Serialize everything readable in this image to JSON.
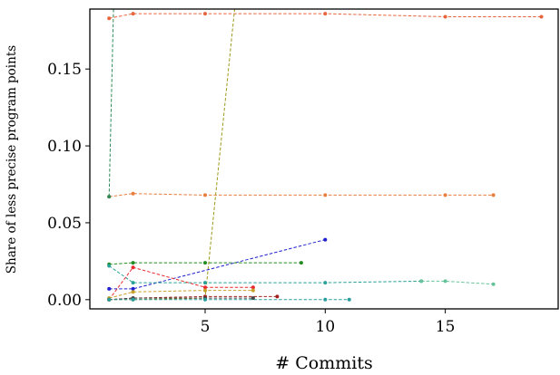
{
  "chart_data": {
    "type": "line",
    "title": "",
    "xlabel": "# Commits",
    "ylabel": "Share of less precise program points",
    "xlim": [
      0.2,
      19.7
    ],
    "ylim": [
      -0.006,
      0.189
    ],
    "xticks": [
      5,
      10,
      15
    ],
    "yticks": [
      0.0,
      0.05,
      0.1,
      0.15
    ],
    "ytick_labels": [
      "0.00",
      "0.05",
      "0.10",
      "0.15"
    ],
    "xtick_labels": [
      "5",
      "10",
      "15"
    ],
    "grid": false,
    "legend": "none",
    "series": [
      {
        "color": "#e8643c",
        "dash": true,
        "x": [
          1,
          2,
          5,
          10,
          15,
          19
        ],
        "y": [
          0.183,
          0.186,
          0.186,
          0.186,
          0.184,
          0.184
        ]
      },
      {
        "color": "#e87d3e",
        "dash": true,
        "x": [
          1,
          2,
          5,
          10,
          15,
          17
        ],
        "y": [
          0.067,
          0.069,
          0.068,
          0.068,
          0.068,
          0.068
        ]
      },
      {
        "color": "#2e8b57",
        "dash": true,
        "x": [
          1,
          1.2
        ],
        "y": [
          0.067,
          0.2
        ]
      },
      {
        "color": "#9c9a1a",
        "dash": true,
        "x": [
          1,
          2,
          5,
          6.3
        ],
        "y": [
          0.0,
          0.0,
          0.001,
          0.2
        ]
      },
      {
        "color": "#1f1fd1",
        "dash": true,
        "x": [
          1,
          2,
          10
        ],
        "y": [
          0.007,
          0.007,
          0.039
        ]
      },
      {
        "color": "#228b22",
        "dash": true,
        "x": [
          1,
          2,
          5,
          9
        ],
        "y": [
          0.023,
          0.024,
          0.024,
          0.024
        ]
      },
      {
        "color": "#2aa198",
        "dash": true,
        "x": [
          1,
          2,
          5,
          10,
          14
        ],
        "y": [
          0.022,
          0.011,
          0.011,
          0.011,
          0.012
        ]
      },
      {
        "color": "#66c29a",
        "dash": true,
        "x": [
          14,
          15,
          17
        ],
        "y": [
          0.012,
          0.012,
          0.01
        ]
      },
      {
        "color": "#e8282d",
        "dash": true,
        "x": [
          1,
          2,
          5,
          7
        ],
        "y": [
          0.0,
          0.021,
          0.008,
          0.008
        ]
      },
      {
        "color": "#c8a028",
        "dash": true,
        "x": [
          1,
          2,
          5,
          7
        ],
        "y": [
          0.001,
          0.005,
          0.006,
          0.006
        ]
      },
      {
        "color": "#a02020",
        "dash": true,
        "x": [
          1,
          2,
          5,
          8
        ],
        "y": [
          0.0,
          0.001,
          0.002,
          0.002
        ]
      },
      {
        "color": "#444444",
        "dash": true,
        "x": [
          1,
          2,
          5,
          7
        ],
        "y": [
          0.0,
          0.001,
          0.001,
          0.001
        ]
      },
      {
        "color": "#2a9d9d",
        "dash": true,
        "x": [
          1,
          2,
          5,
          10,
          11
        ],
        "y": [
          0.0,
          0.0,
          0.0,
          0.0,
          0.0
        ]
      }
    ]
  }
}
